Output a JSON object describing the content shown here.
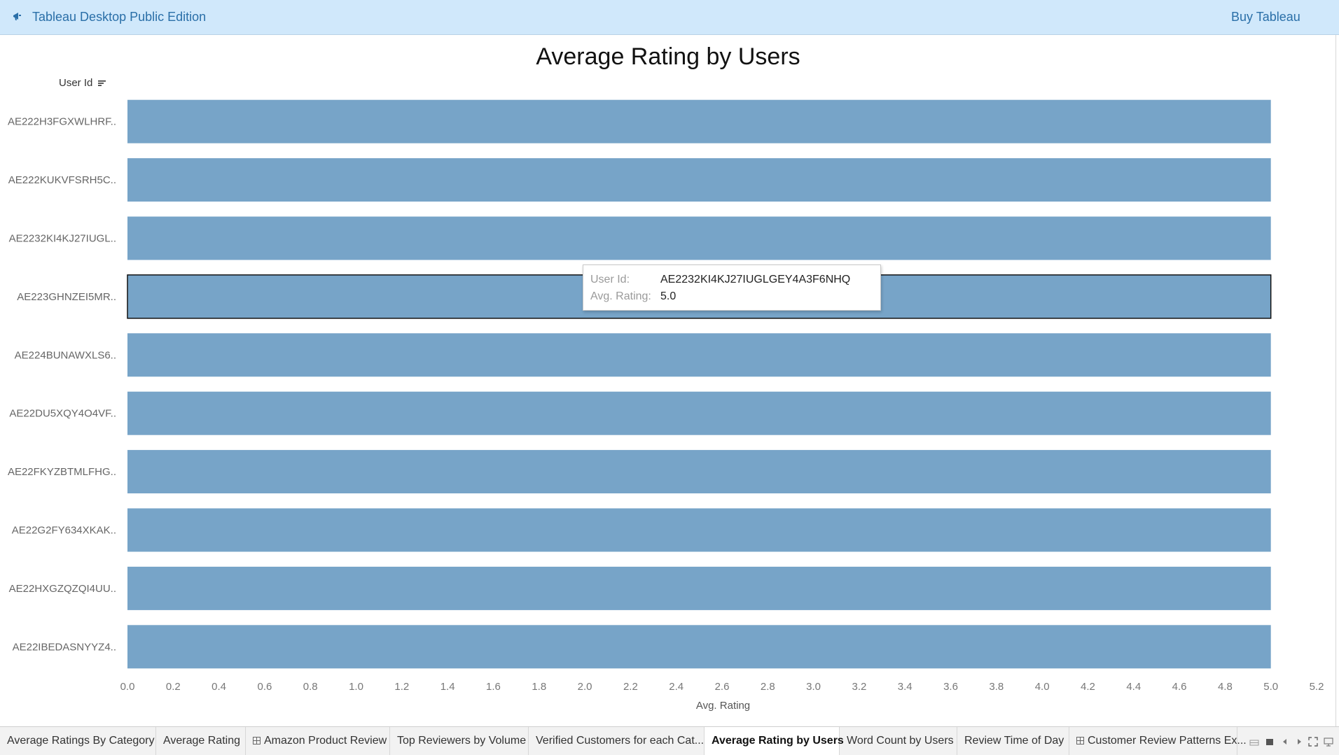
{
  "app": {
    "title": "Tableau Desktop Public Edition",
    "buy_label": "Buy Tableau",
    "icon": "megaphone-icon"
  },
  "chart_data": {
    "type": "bar",
    "orientation": "horizontal",
    "title": "Average Rating by Users",
    "ylabel": "User Id",
    "xlabel": "Avg. Rating",
    "categories": [
      "AE222H3FGXWLHRF..",
      "AE222KUKVFSRH5C..",
      "AE2232KI4KJ27IUGL..",
      "AE223GHNZEI5MR..",
      "AE224BUNAWXLS6..",
      "AE22DU5XQY4O4VF..",
      "AE22FKYZBTMLFHG..",
      "AE22G2FY634XKAK..",
      "AE22HXGZQZQI4UU..",
      "AE22IBEDASNYYZ4.."
    ],
    "values": [
      5.0,
      5.0,
      5.0,
      5.0,
      5.0,
      5.0,
      5.0,
      5.0,
      5.0,
      5.0
    ],
    "xlim": [
      0,
      5.2
    ],
    "xticks": [
      "0.0",
      "0.2",
      "0.4",
      "0.6",
      "0.8",
      "1.0",
      "1.2",
      "1.4",
      "1.6",
      "1.8",
      "2.0",
      "2.2",
      "2.4",
      "2.6",
      "2.8",
      "3.0",
      "3.2",
      "3.4",
      "3.6",
      "3.8",
      "4.0",
      "4.2",
      "4.4",
      "4.6",
      "4.8",
      "5.0",
      "5.2"
    ],
    "highlighted_index": 3,
    "bar_color": "#77a4c8",
    "grid": false
  },
  "tooltip": {
    "user_id_label": "User Id:",
    "user_id_value": "AE2232KI4KJ27IUGLGEY4A3F6NHQ",
    "rating_label": "Avg. Rating:",
    "rating_value": "5.0"
  },
  "tabs": [
    {
      "label": "Average Ratings By Category",
      "icon": null,
      "active": false
    },
    {
      "label": "Average Rating",
      "icon": null,
      "active": false
    },
    {
      "label": "Amazon Product Review",
      "icon": "dashboard-icon",
      "active": false
    },
    {
      "label": "Top Reviewers by Volume",
      "icon": null,
      "active": false
    },
    {
      "label": "Verified Customers for each Cat...",
      "icon": null,
      "active": false
    },
    {
      "label": "Average Rating by Users",
      "icon": null,
      "active": true
    },
    {
      "label": "Word Count by Users",
      "icon": null,
      "active": false
    },
    {
      "label": "Review Time of Day",
      "icon": null,
      "active": false
    },
    {
      "label": "Customer Review Patterns Ex...",
      "icon": "dashboard-icon",
      "active": false
    }
  ]
}
